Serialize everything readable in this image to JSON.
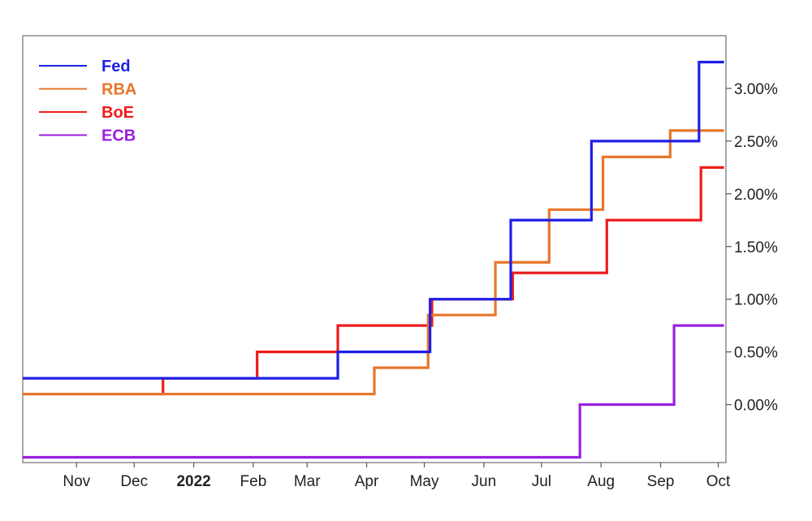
{
  "chart_data": {
    "type": "line",
    "step": true,
    "x_ticks": [
      {
        "date": "2021-11-01",
        "label": "Nov",
        "bold": false
      },
      {
        "date": "2021-12-01",
        "label": "Dec",
        "bold": false
      },
      {
        "date": "2022-01-01",
        "label": "2022",
        "bold": true
      },
      {
        "date": "2022-02-01",
        "label": "Feb",
        "bold": false
      },
      {
        "date": "2022-03-01",
        "label": "Mar",
        "bold": false
      },
      {
        "date": "2022-04-01",
        "label": "Apr",
        "bold": false
      },
      {
        "date": "2022-05-01",
        "label": "May",
        "bold": false
      },
      {
        "date": "2022-06-01",
        "label": "Jun",
        "bold": false
      },
      {
        "date": "2022-07-01",
        "label": "Jul",
        "bold": false
      },
      {
        "date": "2022-08-01",
        "label": "Aug",
        "bold": false
      },
      {
        "date": "2022-09-01",
        "label": "Sep",
        "bold": false
      },
      {
        "date": "2022-10-01",
        "label": "Oct",
        "bold": false
      }
    ],
    "y_ticks": [
      {
        "value": 0.0,
        "label": "0.00%"
      },
      {
        "value": 0.5,
        "label": "0.50%"
      },
      {
        "value": 1.0,
        "label": "1.00%"
      },
      {
        "value": 1.5,
        "label": "1.50%"
      },
      {
        "value": 2.0,
        "label": "2.00%"
      },
      {
        "value": 2.5,
        "label": "2.50%"
      },
      {
        "value": 3.0,
        "label": "3.00%"
      }
    ],
    "xlim": [
      "2021-10-04",
      "2022-10-05"
    ],
    "ylim": [
      -0.55,
      3.5
    ],
    "y_axis_side": "right",
    "grid": false,
    "legend_position": "top-left",
    "series": [
      {
        "name": "Fed",
        "color": "#1f1fe6",
        "points": [
          [
            "2021-10-04",
            0.25
          ],
          [
            "2022-03-17",
            0.5
          ],
          [
            "2022-05-04",
            1.0
          ],
          [
            "2022-06-15",
            1.75
          ],
          [
            "2022-07-27",
            2.5
          ],
          [
            "2022-09-21",
            3.25
          ],
          [
            "2022-10-04",
            3.25
          ]
        ]
      },
      {
        "name": "RBA",
        "color": "#e8762b",
        "points": [
          [
            "2021-10-04",
            0.1
          ],
          [
            "2022-04-05",
            0.35
          ],
          [
            "2022-05-03",
            0.85
          ],
          [
            "2022-06-07",
            1.35
          ],
          [
            "2022-07-05",
            1.85
          ],
          [
            "2022-08-02",
            2.35
          ],
          [
            "2022-09-06",
            2.6
          ],
          [
            "2022-10-04",
            2.6
          ]
        ]
      },
      {
        "name": "BoE",
        "color": "#ee1c1c",
        "points": [
          [
            "2021-10-04",
            0.1
          ],
          [
            "2021-12-16",
            0.25
          ],
          [
            "2022-02-03",
            0.5
          ],
          [
            "2022-03-17",
            0.75
          ],
          [
            "2022-05-05",
            1.0
          ],
          [
            "2022-06-16",
            1.25
          ],
          [
            "2022-08-04",
            1.75
          ],
          [
            "2022-09-22",
            2.25
          ],
          [
            "2022-10-04",
            2.25
          ]
        ]
      },
      {
        "name": "ECB",
        "color": "#9b1fe0",
        "points": [
          [
            "2021-10-04",
            -0.5
          ],
          [
            "2022-07-21",
            0.0
          ],
          [
            "2022-09-08",
            0.75
          ],
          [
            "2022-10-04",
            0.75
          ]
        ]
      }
    ]
  }
}
